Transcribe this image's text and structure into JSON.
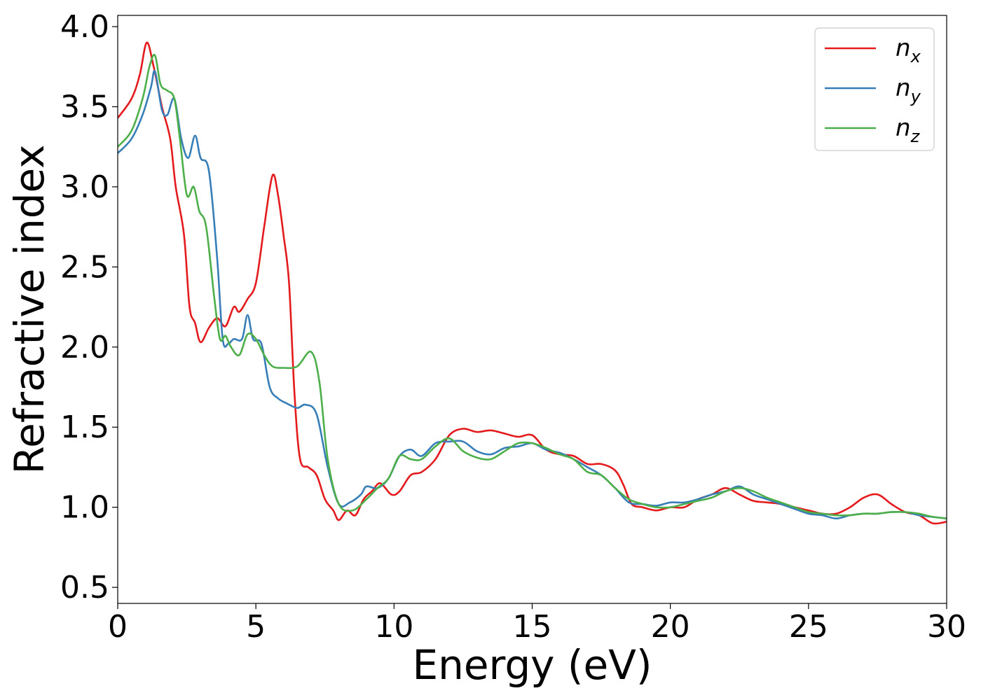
{
  "chart_data": {
    "type": "line",
    "title": "",
    "xlabel": "Energy (eV)",
    "ylabel": "Refractive index",
    "xlim": [
      0,
      30
    ],
    "ylim": [
      0.4,
      4.07
    ],
    "xticks": [
      0,
      5,
      10,
      15,
      20,
      25,
      30
    ],
    "xtick_labels": [
      "0",
      "5",
      "10",
      "15",
      "20",
      "25",
      "30"
    ],
    "yticks": [
      0.5,
      1.0,
      1.5,
      2.0,
      2.5,
      3.0,
      3.5,
      4.0
    ],
    "ytick_labels": [
      "0.5",
      "1.0",
      "1.5",
      "2.0",
      "2.5",
      "3.0",
      "3.5",
      "4.0"
    ],
    "grid": false,
    "legend_position": "top-right",
    "series": [
      {
        "name": "n_x",
        "label_main": "n",
        "label_sub": "x",
        "color": "#e41a1c",
        "x": [
          0,
          0.5,
          0.8,
          1.05,
          1.3,
          1.6,
          1.9,
          2.1,
          2.4,
          2.6,
          2.8,
          3.0,
          3.3,
          3.6,
          3.9,
          4.2,
          4.4,
          4.7,
          5.0,
          5.3,
          5.6,
          5.8,
          6.0,
          6.2,
          6.4,
          6.6,
          6.9,
          7.2,
          7.5,
          7.8,
          8.0,
          8.3,
          8.6,
          8.9,
          9.2,
          9.5,
          9.9,
          10.2,
          10.6,
          11.0,
          11.5,
          12.0,
          12.5,
          13.0,
          13.5,
          14.0,
          14.5,
          15.0,
          15.5,
          16.0,
          16.5,
          17.0,
          17.5,
          18.0,
          18.3,
          18.6,
          19.0,
          19.5,
          20.0,
          20.5,
          21.0,
          21.5,
          22.0,
          22.5,
          23.0,
          23.5,
          24.0,
          25.0,
          25.5,
          26.0,
          26.5,
          27.0,
          27.5,
          28.0,
          28.5,
          29.0,
          29.5,
          30.0
        ],
        "y": [
          3.43,
          3.55,
          3.7,
          3.9,
          3.75,
          3.5,
          3.3,
          3.0,
          2.7,
          2.25,
          2.15,
          2.03,
          2.12,
          2.18,
          2.13,
          2.25,
          2.22,
          2.3,
          2.4,
          2.75,
          3.07,
          2.95,
          2.7,
          2.4,
          1.7,
          1.3,
          1.25,
          1.2,
          1.05,
          0.98,
          0.92,
          0.98,
          0.95,
          1.05,
          1.1,
          1.15,
          1.08,
          1.1,
          1.2,
          1.22,
          1.3,
          1.45,
          1.49,
          1.47,
          1.48,
          1.46,
          1.44,
          1.45,
          1.36,
          1.33,
          1.32,
          1.27,
          1.27,
          1.23,
          1.14,
          1.02,
          1.0,
          0.98,
          1.0,
          1.0,
          1.05,
          1.08,
          1.12,
          1.08,
          1.04,
          1.03,
          1.02,
          0.98,
          0.96,
          0.96,
          1.0,
          1.06,
          1.08,
          1.02,
          0.97,
          0.95,
          0.9,
          0.91
        ]
      },
      {
        "name": "n_y",
        "label_main": "n",
        "label_sub": "y",
        "color": "#377eb8",
        "x": [
          0,
          0.5,
          0.9,
          1.2,
          1.35,
          1.6,
          1.8,
          2.05,
          2.3,
          2.55,
          2.8,
          3.0,
          3.3,
          3.6,
          3.8,
          4.0,
          4.2,
          4.5,
          4.7,
          4.9,
          5.2,
          5.5,
          5.8,
          6.1,
          6.5,
          6.8,
          7.2,
          7.6,
          8.0,
          8.4,
          8.8,
          9.0,
          9.4,
          9.8,
          10.2,
          10.6,
          11.0,
          11.5,
          12.0,
          12.5,
          13.0,
          13.5,
          14.0,
          14.5,
          15.0,
          15.5,
          16.0,
          16.5,
          17.0,
          17.5,
          18.0,
          18.5,
          19.0,
          19.5,
          20.0,
          20.5,
          21.0,
          21.5,
          22.0,
          22.5,
          23.0,
          23.5,
          24.0,
          24.5,
          25.0,
          25.5,
          26.0,
          26.5,
          27.0,
          27.5,
          28.0,
          28.5,
          29.0,
          29.5,
          30.0
        ],
        "y": [
          3.21,
          3.3,
          3.45,
          3.62,
          3.72,
          3.48,
          3.45,
          3.55,
          3.3,
          3.18,
          3.32,
          3.18,
          3.1,
          2.55,
          2.05,
          2.02,
          2.05,
          2.05,
          2.2,
          2.05,
          2.02,
          1.75,
          1.68,
          1.65,
          1.62,
          1.64,
          1.58,
          1.25,
          1.02,
          1.03,
          1.08,
          1.13,
          1.12,
          1.18,
          1.32,
          1.36,
          1.32,
          1.4,
          1.41,
          1.41,
          1.35,
          1.33,
          1.37,
          1.38,
          1.4,
          1.36,
          1.34,
          1.3,
          1.25,
          1.2,
          1.12,
          1.03,
          1.02,
          1.01,
          1.03,
          1.03,
          1.05,
          1.08,
          1.1,
          1.13,
          1.08,
          1.05,
          1.02,
          0.99,
          0.96,
          0.95,
          0.93,
          0.95,
          0.96,
          0.96,
          0.97,
          0.97,
          0.95,
          0.94,
          0.93
        ]
      },
      {
        "name": "n_z",
        "label_main": "n",
        "label_sub": "z",
        "color": "#4daf4a",
        "x": [
          0,
          0.5,
          0.9,
          1.15,
          1.35,
          1.55,
          1.8,
          2.05,
          2.25,
          2.5,
          2.75,
          2.95,
          3.2,
          3.5,
          3.7,
          3.9,
          4.1,
          4.4,
          4.7,
          5.0,
          5.3,
          5.6,
          6.0,
          6.5,
          7.0,
          7.3,
          7.6,
          8.0,
          8.5,
          9.0,
          9.4,
          9.8,
          10.2,
          10.6,
          11.0,
          11.5,
          12.0,
          12.5,
          13.0,
          13.5,
          14.0,
          14.5,
          15.0,
          15.5,
          16.0,
          16.5,
          17.0,
          17.5,
          18.0,
          18.5,
          19.0,
          19.5,
          20.0,
          20.5,
          21.0,
          21.5,
          22.0,
          22.5,
          23.0,
          23.5,
          24.0,
          24.5,
          25.0,
          25.5,
          26.0,
          26.5,
          27.0,
          27.5,
          28.0,
          28.5,
          29.0,
          29.5,
          30.0
        ],
        "y": [
          3.25,
          3.35,
          3.55,
          3.75,
          3.82,
          3.64,
          3.6,
          3.55,
          3.3,
          2.95,
          3.0,
          2.85,
          2.75,
          2.3,
          2.05,
          2.07,
          2.0,
          1.95,
          2.08,
          2.05,
          1.95,
          1.88,
          1.87,
          1.88,
          1.97,
          1.78,
          1.3,
          1.02,
          0.98,
          1.05,
          1.12,
          1.18,
          1.32,
          1.3,
          1.3,
          1.38,
          1.43,
          1.35,
          1.31,
          1.3,
          1.35,
          1.4,
          1.4,
          1.37,
          1.33,
          1.3,
          1.22,
          1.2,
          1.12,
          1.05,
          1.02,
          1.0,
          1.0,
          1.02,
          1.04,
          1.06,
          1.1,
          1.12,
          1.1,
          1.06,
          1.03,
          1.0,
          0.97,
          0.96,
          0.95,
          0.95,
          0.96,
          0.96,
          0.97,
          0.97,
          0.96,
          0.94,
          0.93
        ]
      }
    ]
  }
}
